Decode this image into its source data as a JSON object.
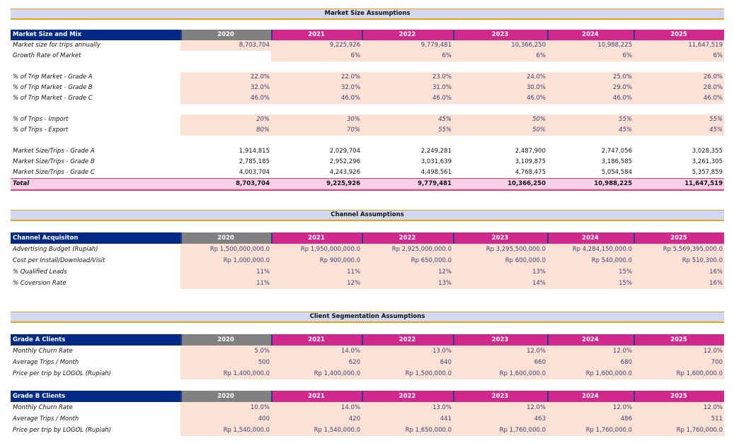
{
  "years": [
    "2020",
    "2021",
    "2022",
    "2023",
    "2024",
    "2025"
  ],
  "colors": {
    "header_label": "#002a85",
    "header_first_year": "#808080",
    "header_year": "#d0288c",
    "input_fill": "#fbe2d5",
    "banner": "#d3d8f0",
    "banner_border": "#e8a317",
    "total_fill": "#f5d0e6"
  },
  "sections": [
    {
      "title": "Market Size Assumptions"
    },
    {
      "title": "Channel Assumptions"
    },
    {
      "title": "Client Segmentation Assumptions"
    }
  ],
  "tables": [
    {
      "title": "Market Size and Mix",
      "rows": [
        {
          "label": "Market size for trips annually",
          "kind": "input",
          "values": [
            "8,703,704",
            "9,225,926",
            "9,779,481",
            "10,366,250",
            "10,988,225",
            "11,647,519"
          ]
        },
        {
          "label": "Growth Rate of Market",
          "kind": "input",
          "values": [
            null,
            "6%",
            "6%",
            "6%",
            "6%",
            "6%"
          ]
        },
        {
          "label": "% of Trip Market - Grade A",
          "kind": "input",
          "values": [
            "22.0%",
            "22.0%",
            "23.0%",
            "24.0%",
            "25.0%",
            "26.0%"
          ]
        },
        {
          "label": "% of Trip Market - Grade B",
          "kind": "input",
          "values": [
            "32.0%",
            "32.0%",
            "31.0%",
            "30.0%",
            "29.0%",
            "28.0%"
          ]
        },
        {
          "label": "% of Trip Market - Grade C",
          "kind": "input",
          "values": [
            "46.0%",
            "46.0%",
            "46.0%",
            "46.0%",
            "46.0%",
            "46.0%"
          ]
        },
        {
          "label": "% of Trips - Import",
          "kind": "input-italic",
          "values": [
            "20%",
            "30%",
            "45%",
            "50%",
            "55%",
            "55%"
          ]
        },
        {
          "label": "% of Trips - Export",
          "kind": "input-italic",
          "values": [
            "80%",
            "70%",
            "55%",
            "50%",
            "45%",
            "45%"
          ]
        },
        {
          "label": "Market Size/Trips - Grade A",
          "kind": "calc",
          "values": [
            "1,914,815",
            "2,029,704",
            "2,249,281",
            "2,487,900",
            "2,747,056",
            "3,028,355"
          ]
        },
        {
          "label": "Market Size/Trips - Grade B",
          "kind": "calc",
          "values": [
            "2,785,185",
            "2,952,296",
            "3,031,639",
            "3,109,875",
            "3,186,585",
            "3,261,305"
          ]
        },
        {
          "label": "Market Size/Trips - Grade C",
          "kind": "calc",
          "values": [
            "4,003,704",
            "4,243,926",
            "4,498,561",
            "4,768,475",
            "5,054,584",
            "5,357,859"
          ]
        },
        {
          "label": "Total",
          "kind": "total",
          "values": [
            "8,703,704",
            "9,225,926",
            "9,779,481",
            "10,366,250",
            "10,988,225",
            "11,647,519"
          ]
        }
      ]
    },
    {
      "title": "Channel Acquisiton",
      "rows": [
        {
          "label": "Advertising Budget (Rupiah)",
          "kind": "input",
          "values": [
            "Rp 1,500,000,000.0",
            "Rp 1,950,000,000.0",
            "Rp 2,925,000,000.0",
            "Rp 3,295,500,000.0",
            "Rp 4,284,150,000.0",
            "Rp 5,569,395,000.0"
          ]
        },
        {
          "label": "Cost per Install/Download/Visit",
          "kind": "input",
          "values": [
            "Rp 1,000,000.0",
            "Rp 900,000.0",
            "Rp 650,000.0",
            "Rp 600,000.0",
            "Rp 540,000.0",
            "Rp 510,300.0"
          ]
        },
        {
          "label": "% Qualified Leads",
          "kind": "input",
          "values": [
            "11%",
            "11%",
            "12%",
            "13%",
            "15%",
            "16%"
          ]
        },
        {
          "label": "% Coversion Rate",
          "kind": "input",
          "values": [
            "11%",
            "12%",
            "13%",
            "14%",
            "15%",
            "16%"
          ]
        }
      ]
    },
    {
      "title": "Grade A Clients",
      "rows": [
        {
          "label": "Monthly Churn Rate",
          "kind": "input",
          "values": [
            "5.0%",
            "14.0%",
            "13.0%",
            "12.0%",
            "12.0%",
            "12.0%"
          ]
        },
        {
          "label": "Average Trips / Month",
          "kind": "input",
          "values": [
            "500",
            "620",
            "640",
            "660",
            "680",
            "700"
          ]
        },
        {
          "label": "Price per trip by LOGOL (Rupiah)",
          "kind": "input",
          "values": [
            "Rp 1,400,000.0",
            "Rp 1,400,000.0",
            "Rp 1,500,000.0",
            "Rp 1,600,000.0",
            "Rp 1,600,000.0",
            "Rp 1,600,000.0"
          ]
        }
      ]
    },
    {
      "title": "Grade B Clients",
      "rows": [
        {
          "label": "Monthly Churn Rate",
          "kind": "input",
          "values": [
            "10.0%",
            "14.0%",
            "13.0%",
            "12.0%",
            "12.0%",
            "12.0%"
          ]
        },
        {
          "label": "Average Trips / Month",
          "kind": "input",
          "values": [
            "400",
            "420",
            "441",
            "463",
            "486",
            "511"
          ]
        },
        {
          "label": "Price per trip by LOGOL (Rupiah)",
          "kind": "input",
          "values": [
            "Rp 1,540,000.0",
            "Rp 1,540,000.0",
            "Rp 1,650,000.0",
            "Rp 1,760,000.0",
            "Rp 1,760,000.0",
            "Rp 1,760,000.0"
          ]
        }
      ]
    }
  ]
}
